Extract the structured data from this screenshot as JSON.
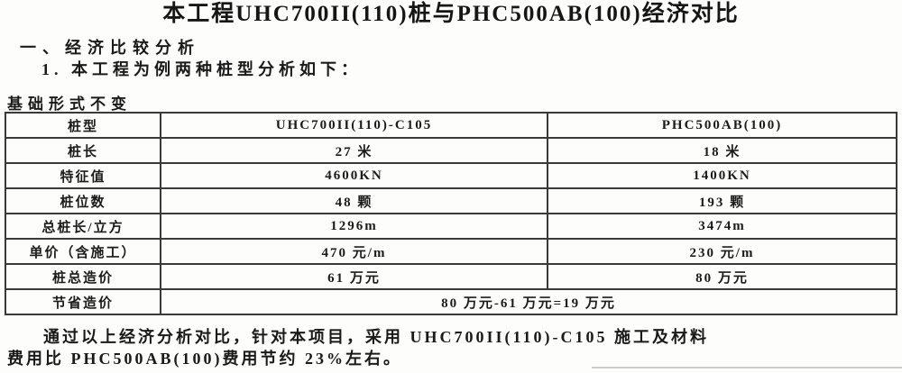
{
  "doc": {
    "title": "本工程UHC700II(110)桩与PHC500AB(100)经济对比",
    "section_heading": "一、经济比较分析",
    "subsection_heading": "1. 本工程为例两种桩型分析如下：",
    "table_caption": "基础形式不变",
    "closing_line1": "通过以上经济分析对比，针对本项目，采用 UHC700II(110)-C105 施工及材料",
    "closing_line2": "费用比 PHC500AB(100)费用节约 23%左右。"
  },
  "table": {
    "rows": [
      {
        "label": "桩型",
        "uhc": "UHC700II(110)-C105",
        "phc": "PHC500AB(100)"
      },
      {
        "label": "桩长",
        "uhc": "27 米",
        "phc": "18 米"
      },
      {
        "label": "特征值",
        "uhc": "4600KN",
        "phc": "1400KN"
      },
      {
        "label": "桩位数",
        "uhc": "48 颗",
        "phc": "193 颗"
      },
      {
        "label": "总桩长/立方",
        "uhc": "1296m",
        "phc": "3474m"
      },
      {
        "label": "单价（含施工）",
        "uhc": "470 元/m",
        "phc": "230 元/m"
      },
      {
        "label": "桩总造价",
        "uhc": "61 万元",
        "phc": "80 万元"
      }
    ],
    "saving_row": {
      "label": "节省造价",
      "value": "80 万元-61 万元=19 万元"
    }
  }
}
